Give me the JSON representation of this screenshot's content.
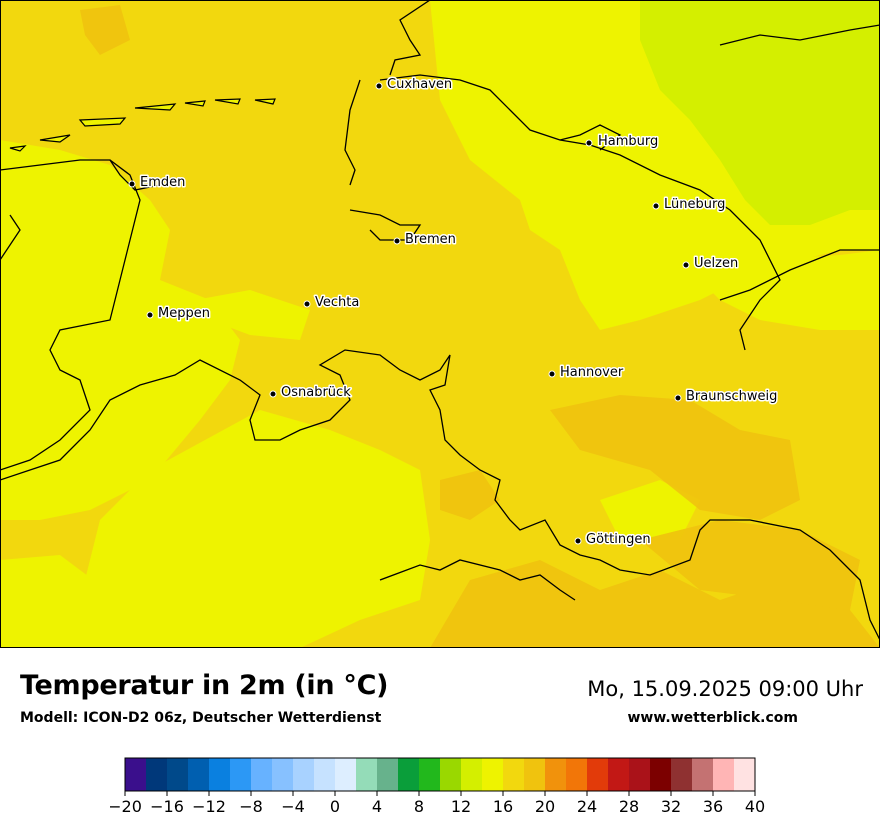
{
  "map": {
    "title": "Temperatur in 2m (in °C)",
    "model": "Modell: ICON-D2 06z, Deutscher Wetterdienst",
    "datetime": "Mo, 15.09.2025 09:00 Uhr",
    "website": "www.wetterblick.com",
    "cities": [
      {
        "name": "Cuxhaven"
      },
      {
        "name": "Hamburg"
      },
      {
        "name": "Emden"
      },
      {
        "name": "Lüneburg"
      },
      {
        "name": "Bremen"
      },
      {
        "name": "Uelzen"
      },
      {
        "name": "Vechta"
      },
      {
        "name": "Meppen"
      },
      {
        "name": "Hannover"
      },
      {
        "name": "Osnabrück"
      },
      {
        "name": "Braunschweig"
      },
      {
        "name": "Göttingen"
      }
    ]
  },
  "colors": {
    "temp_16": "#eef300",
    "temp_18": "#f2d80e",
    "temp_20": "#f0c30e",
    "temp_14": "#d4ef00"
  },
  "legend": {
    "ticks": [
      "−20",
      "−16",
      "−12",
      "−8",
      "−4",
      "0",
      "4",
      "8",
      "12",
      "16",
      "20",
      "24",
      "28",
      "32",
      "36",
      "40"
    ],
    "colors": [
      "#3a0f8c",
      "#00387a",
      "#00498a",
      "#005fb0",
      "#0a80e0",
      "#2c98f5",
      "#67b2ff",
      "#87c1ff",
      "#a8d2ff",
      "#c6e2ff",
      "#ddeeff",
      "#94dcb8",
      "#67b28c",
      "#0a9e3a",
      "#22b81c",
      "#9ad800",
      "#d4ef00",
      "#eef300",
      "#f2d80e",
      "#f0c30e",
      "#f1920c",
      "#f27608",
      "#e23b0a",
      "#c21815",
      "#aa1219",
      "#7c0000",
      "#8f3131",
      "#c47272",
      "#ffb5b5",
      "#ffe2e2"
    ]
  }
}
